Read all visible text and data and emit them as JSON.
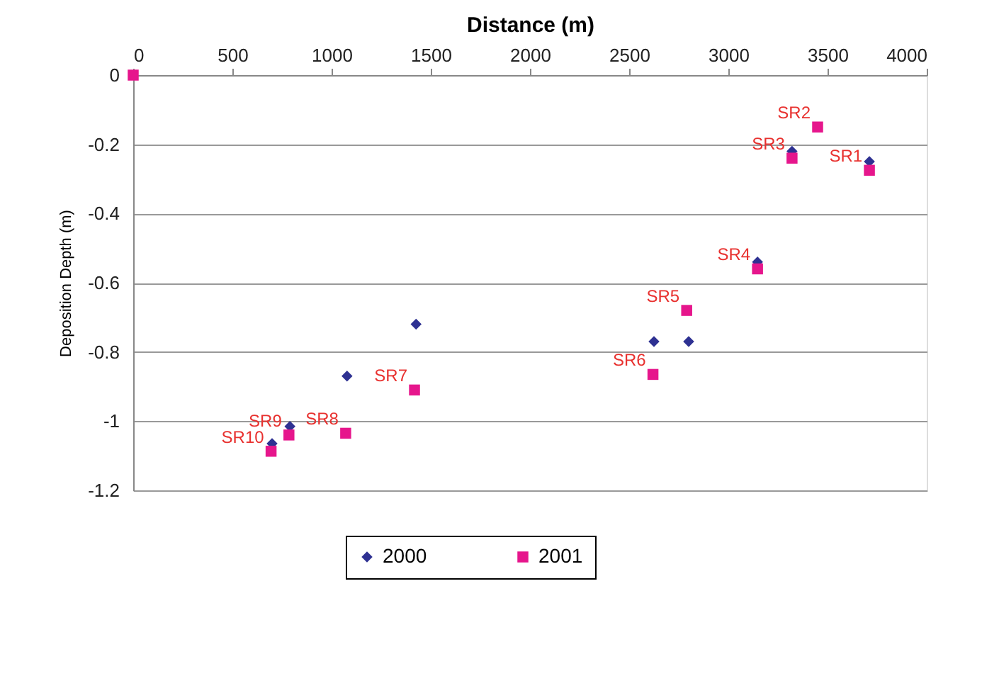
{
  "chart_data": {
    "type": "scatter",
    "xlabel": "Distance (m)",
    "ylabel": "Deposition Depth (m)",
    "xlim": [
      0,
      4000
    ],
    "xticks": [
      0,
      500,
      1000,
      1500,
      2000,
      2500,
      3000,
      3500,
      4000
    ],
    "ylim": [
      -1.2,
      0
    ],
    "yticks": [
      -1.2,
      -1,
      -0.8,
      -0.6,
      -0.4,
      -0.2,
      0
    ],
    "grid": "y",
    "legend": "bottom",
    "series": [
      {
        "name": "2000",
        "color": "#2e3192",
        "marker": "diamond",
        "x": [
          null,
          3711,
          null,
          3321,
          3147,
          2800,
          2625,
          1426,
          1078,
          790,
          700
        ],
        "values": [
          null,
          -0.25,
          null,
          -0.22,
          -0.54,
          -0.77,
          -0.77,
          -0.72,
          -0.87,
          -1.015,
          -1.065
        ]
      },
      {
        "name": "2001",
        "color": "#e6168c",
        "marker": "square",
        "x": [
          0,
          3711,
          3450,
          3321,
          3147,
          2790,
          2620,
          1418,
          1071,
          785,
          695
        ],
        "values": [
          0,
          -0.275,
          -0.15,
          -0.24,
          -0.56,
          -0.68,
          -0.865,
          -0.91,
          -1.035,
          -1.04,
          -1.087
        ]
      }
    ],
    "annotations": [
      {
        "text": "SR1",
        "x": 3711,
        "y": -0.275
      },
      {
        "text": "SR2",
        "x": 3450,
        "y": -0.15
      },
      {
        "text": "SR3",
        "x": 3321,
        "y": -0.24
      },
      {
        "text": "SR4",
        "x": 3147,
        "y": -0.56
      },
      {
        "text": "SR5",
        "x": 2790,
        "y": -0.68
      },
      {
        "text": "SR6",
        "x": 2620,
        "y": -0.865
      },
      {
        "text": "SR7",
        "x": 1418,
        "y": -0.91
      },
      {
        "text": "SR8",
        "x": 1071,
        "y": -1.035
      },
      {
        "text": "SR9",
        "x": 785,
        "y": -1.04
      },
      {
        "text": "SR10",
        "x": 695,
        "y": -1.087
      }
    ]
  }
}
